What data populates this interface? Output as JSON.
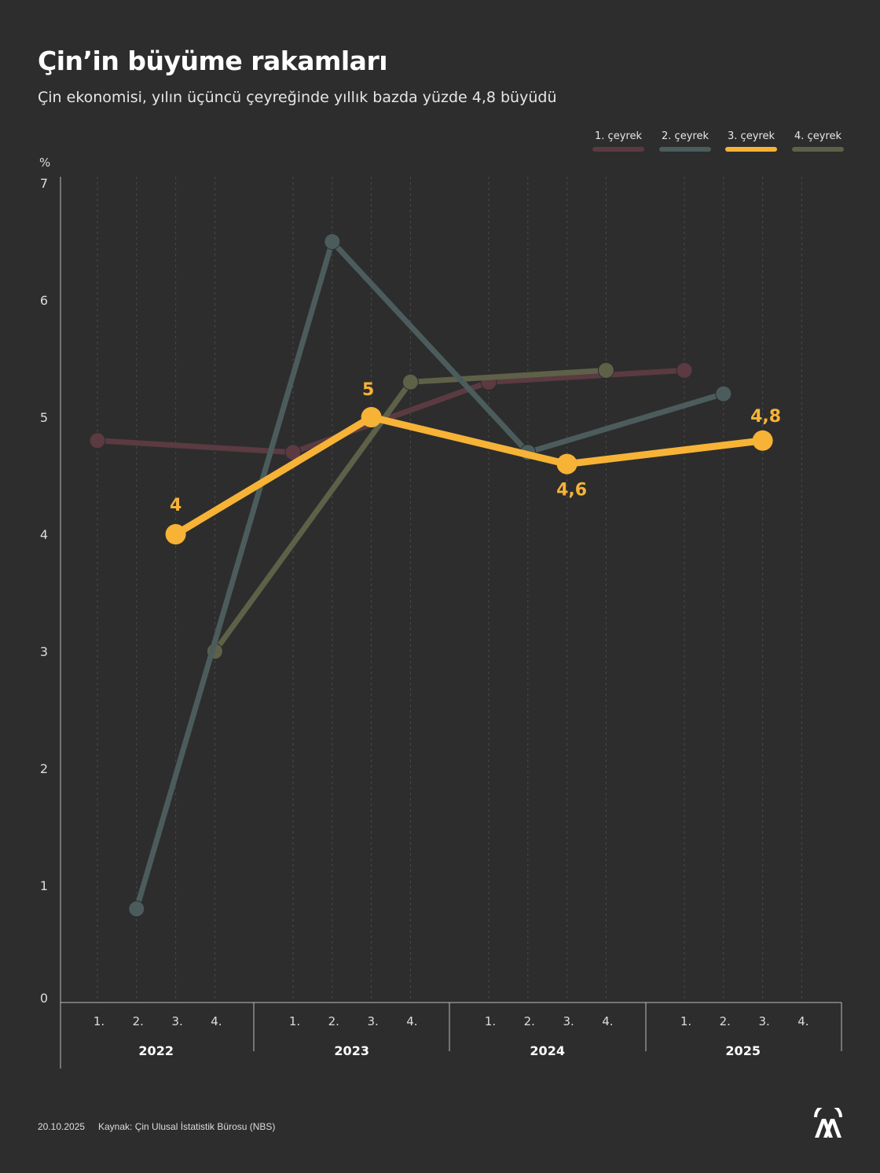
{
  "chart_data": {
    "type": "line",
    "title": "Çin’in büyüme rakamları",
    "subtitle": "Çin ekonomisi, yılın üçüncü çeyreğinde yıllık bazda yüzde 4,8 büyüdü",
    "ylabel": "%",
    "ylim": [
      0,
      7
    ],
    "yticks": [
      "0",
      "1",
      "2",
      "3",
      "4",
      "5",
      "6",
      "7"
    ],
    "years": [
      "2022",
      "2023",
      "2024",
      "2025"
    ],
    "quarter_labels": [
      "1.",
      "2.",
      "3.",
      "4."
    ],
    "series": [
      {
        "name": "1.  çeyrek",
        "quarter": 1,
        "color": "#5b3a41",
        "values": [
          4.8,
          4.7,
          5.3,
          5.4
        ]
      },
      {
        "name": "4. çeyrek",
        "quarter": 4,
        "color": "#5e6148",
        "values": [
          3.0,
          5.3,
          5.4,
          null
        ]
      },
      {
        "name": "2. çeyrek",
        "quarter": 2,
        "color": "#4c5c5c",
        "values": [
          0.8,
          6.5,
          4.7,
          5.2
        ]
      },
      {
        "name": "3. çeyrek",
        "quarter": 3,
        "color": "#f6b336",
        "values": [
          4.0,
          5.0,
          4.6,
          4.8
        ],
        "labels": [
          "4",
          "5",
          "4,6",
          "4,8"
        ],
        "highlight": true
      }
    ],
    "legend_order": [
      "1.  çeyrek",
      "2. çeyrek",
      "3. çeyrek",
      "4. çeyrek"
    ],
    "legend_placement": "top-right",
    "grid": "vertical dashed"
  },
  "footer": {
    "date": "20.10.2025",
    "source": "Kaynak: Çin Ulusal İstatistik Bürosu (NBS)"
  },
  "logo_text": "AA"
}
